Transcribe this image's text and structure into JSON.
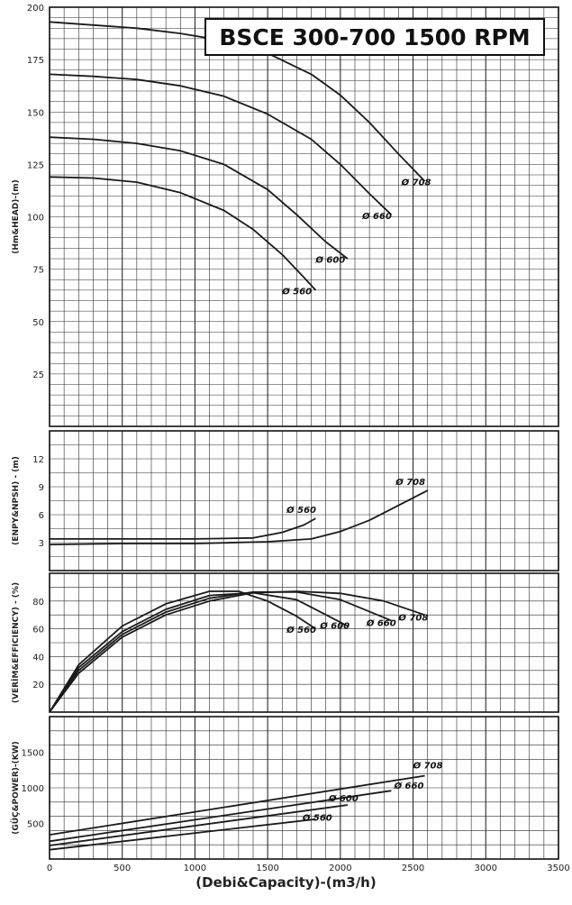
{
  "title": "BSCE 300-700 1500 RPM",
  "xlabel": "(Debi&Capacity)-(m3/h)",
  "x_ticks": [
    0,
    500,
    1000,
    1500,
    2000,
    2500,
    3000,
    3500
  ],
  "line_color": "#1a1a1a",
  "grid_color": "#2a2a2a",
  "chart_data": [
    {
      "type": "line",
      "ylabel": "(Hm&HEAD)-(m)",
      "xlim": [
        0,
        3500
      ],
      "ylim": [
        0,
        200
      ],
      "y_ticks": [
        25,
        50,
        75,
        100,
        125,
        150,
        175,
        200
      ],
      "grid": true,
      "series": [
        {
          "name": "Ø 708",
          "x": [
            0,
            300,
            600,
            900,
            1200,
            1500,
            1800,
            2000,
            2200,
            2400,
            2580
          ],
          "y": [
            193,
            191.5,
            190,
            187.5,
            184,
            178,
            168,
            158,
            145,
            130,
            117
          ]
        },
        {
          "name": "Ø 660",
          "x": [
            0,
            300,
            600,
            900,
            1200,
            1500,
            1800,
            2000,
            2200,
            2350
          ],
          "y": [
            168,
            167,
            165.5,
            162.5,
            157.5,
            149,
            137,
            125,
            111,
            101
          ]
        },
        {
          "name": "Ø 600",
          "x": [
            0,
            300,
            600,
            900,
            1200,
            1500,
            1700,
            1900,
            2050
          ],
          "y": [
            138,
            137,
            135,
            131.5,
            125,
            113,
            101,
            88,
            80
          ]
        },
        {
          "name": "Ø 560",
          "x": [
            0,
            300,
            600,
            900,
            1200,
            1400,
            1600,
            1750,
            1830
          ],
          "y": [
            119,
            118.5,
            116.5,
            111.5,
            103,
            94,
            82,
            71,
            65
          ]
        }
      ],
      "annotations": [
        {
          "text": "Ø 708",
          "x": 2420,
          "y": 115
        },
        {
          "text": "Ø 660",
          "x": 2150,
          "y": 99
        },
        {
          "text": "Ø 600",
          "x": 1830,
          "y": 78
        },
        {
          "text": "Ø 560",
          "x": 1600,
          "y": 63
        }
      ]
    },
    {
      "type": "line",
      "ylabel": "(ENPY&NPSH) - (m)",
      "xlim": [
        0,
        3500
      ],
      "ylim": [
        0,
        15
      ],
      "y_ticks": [
        3,
        6,
        9,
        12
      ],
      "grid": true,
      "series": [
        {
          "name": "Ø 708",
          "x": [
            0,
            500,
            1000,
            1500,
            1800,
            2000,
            2200,
            2400,
            2600
          ],
          "y": [
            2.8,
            2.9,
            2.9,
            3.1,
            3.4,
            4.2,
            5.4,
            7.0,
            8.6
          ]
        },
        {
          "name": "Ø 560",
          "x": [
            0,
            500,
            1000,
            1400,
            1600,
            1750,
            1830
          ],
          "y": [
            3.4,
            3.4,
            3.4,
            3.5,
            4.1,
            4.9,
            5.6
          ]
        }
      ],
      "annotations": [
        {
          "text": "Ø 708",
          "x": 2380,
          "y": 9.2
        },
        {
          "text": "Ø 560",
          "x": 1630,
          "y": 6.2
        }
      ]
    },
    {
      "type": "line",
      "ylabel": "(VERİM&EFFICIENCY) - (%)",
      "xlim": [
        0,
        3500
      ],
      "ylim": [
        0,
        100
      ],
      "y_ticks": [
        20,
        40,
        60,
        80
      ],
      "grid": true,
      "series": [
        {
          "name": "Ø 708",
          "x": [
            0,
            200,
            500,
            800,
            1100,
            1400,
            1700,
            2000,
            2300,
            2580
          ],
          "y": [
            0,
            28,
            54,
            70,
            80,
            86,
            87,
            85.5,
            80,
            70
          ]
        },
        {
          "name": "Ø 660",
          "x": [
            0,
            200,
            500,
            800,
            1100,
            1400,
            1700,
            2000,
            2350
          ],
          "y": [
            0,
            30,
            56,
            72,
            82,
            86.5,
            86.5,
            81,
            66
          ]
        },
        {
          "name": "Ø 600",
          "x": [
            0,
            200,
            500,
            800,
            1100,
            1400,
            1700,
            2050
          ],
          "y": [
            0,
            32,
            58,
            74,
            84,
            86,
            81,
            62
          ]
        },
        {
          "name": "Ø 560",
          "x": [
            0,
            200,
            500,
            800,
            1100,
            1300,
            1500,
            1700,
            1830
          ],
          "y": [
            0,
            34,
            62,
            78,
            87,
            87,
            80,
            69,
            60
          ]
        }
      ],
      "annotations": [
        {
          "text": "Ø 708",
          "x": 2400,
          "y": 66
        },
        {
          "text": "Ø 660",
          "x": 2180,
          "y": 62
        },
        {
          "text": "Ø 600",
          "x": 1860,
          "y": 60
        },
        {
          "text": "Ø 560",
          "x": 1630,
          "y": 57
        }
      ]
    },
    {
      "type": "line",
      "ylabel": "(GÜÇ&POWER)-(KW)",
      "xlim": [
        0,
        3500
      ],
      "ylim": [
        0,
        2000
      ],
      "y_ticks": [
        500,
        1000,
        1500
      ],
      "grid": true,
      "series": [
        {
          "name": "Ø 708",
          "x": [
            0,
            2580
          ],
          "y": [
            340,
            1170
          ]
        },
        {
          "name": "Ø 660",
          "x": [
            0,
            2350
          ],
          "y": [
            250,
            960
          ]
        },
        {
          "name": "Ø 600",
          "x": [
            0,
            2050
          ],
          "y": [
            190,
            760
          ]
        },
        {
          "name": "Ø 560",
          "x": [
            0,
            1830
          ],
          "y": [
            130,
            560
          ]
        }
      ],
      "annotations": [
        {
          "text": "Ø 708",
          "x": 2500,
          "y": 1270
        },
        {
          "text": "Ø 660",
          "x": 2370,
          "y": 990
        },
        {
          "text": "Ø 600",
          "x": 1920,
          "y": 810
        },
        {
          "text": "Ø 560",
          "x": 1740,
          "y": 540
        }
      ]
    }
  ]
}
